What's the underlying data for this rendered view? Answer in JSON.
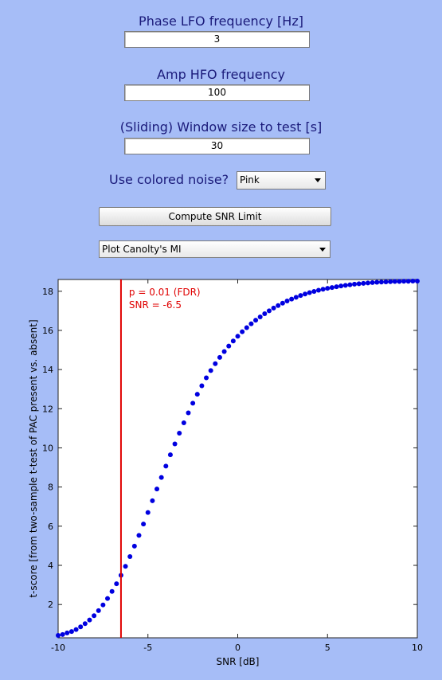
{
  "controls": {
    "phase_label": "Phase LFO frequency [Hz]",
    "phase_value": "3",
    "amp_label": "Amp HFO frequency",
    "amp_value": "100",
    "window_label": "(Sliding) Window size to test [s]",
    "window_value": "30",
    "noise_label": "Use colored noise?",
    "noise_selected": "Pink",
    "compute_button": "Compute SNR Limit",
    "plot_selected": "Plot Canolty's MI"
  },
  "chart_data": {
    "type": "scatter",
    "xlabel": "SNR [dB]",
    "ylabel": "t-score [from two-sample t-test of PAC present vs. absent]",
    "xlim": [
      -10,
      10
    ],
    "ylim": [
      0.3,
      18.6
    ],
    "xticks": [
      "-10",
      "-5",
      "0",
      "5",
      "10"
    ],
    "yticks": [
      "2",
      "4",
      "6",
      "8",
      "10",
      "12",
      "14",
      "16",
      "18"
    ],
    "grid": false,
    "threshold_x": -6.5,
    "annotation_line1": "p = 0.01 (FDR)",
    "annotation_line2": "SNR = -6.5",
    "series": [
      {
        "color": "#0000e0",
        "x": [
          -10,
          -9.75,
          -9.5,
          -9.25,
          -9,
          -8.75,
          -8.5,
          -8.25,
          -8,
          -7.75,
          -7.5,
          -7.25,
          -7,
          -6.75,
          -6.5,
          -6.25,
          -6,
          -5.75,
          -5.5,
          -5.25,
          -5,
          -4.75,
          -4.5,
          -4.25,
          -4,
          -3.75,
          -3.5,
          -3.25,
          -3,
          -2.75,
          -2.5,
          -2.25,
          -2,
          -1.75,
          -1.5,
          -1.25,
          -1,
          -0.75,
          -0.5,
          -0.25,
          0,
          0.25,
          0.5,
          0.75,
          1,
          1.25,
          1.5,
          1.75,
          2,
          2.25,
          2.5,
          2.75,
          3,
          3.25,
          3.5,
          3.75,
          4,
          4.25,
          4.5,
          4.75,
          5,
          5.25,
          5.5,
          5.75,
          6,
          6.25,
          6.5,
          6.75,
          7,
          7.25,
          7.5,
          7.75,
          8,
          8.25,
          8.5,
          8.75,
          9,
          9.25,
          9.5,
          9.75,
          10
        ],
        "y": [
          0.42,
          0.47,
          0.55,
          0.62,
          0.72,
          0.86,
          1.02,
          1.21,
          1.43,
          1.69,
          1.98,
          2.31,
          2.67,
          3.06,
          3.49,
          3.95,
          4.45,
          4.98,
          5.53,
          6.11,
          6.7,
          7.3,
          7.9,
          8.49,
          9.07,
          9.65,
          10.2,
          10.75,
          11.28,
          11.79,
          12.28,
          12.74,
          13.17,
          13.58,
          13.95,
          14.3,
          14.62,
          14.92,
          15.2,
          15.46,
          15.7,
          15.93,
          16.14,
          16.34,
          16.52,
          16.69,
          16.85,
          17,
          17.14,
          17.27,
          17.39,
          17.5,
          17.6,
          17.69,
          17.78,
          17.86,
          17.93,
          17.99,
          18.05,
          18.1,
          18.15,
          18.19,
          18.23,
          18.27,
          18.3,
          18.33,
          18.36,
          18.38,
          18.4,
          18.42,
          18.44,
          18.46,
          18.47,
          18.48,
          18.49,
          18.5,
          18.5,
          18.51,
          18.51,
          18.52,
          18.52
        ]
      }
    ]
  }
}
